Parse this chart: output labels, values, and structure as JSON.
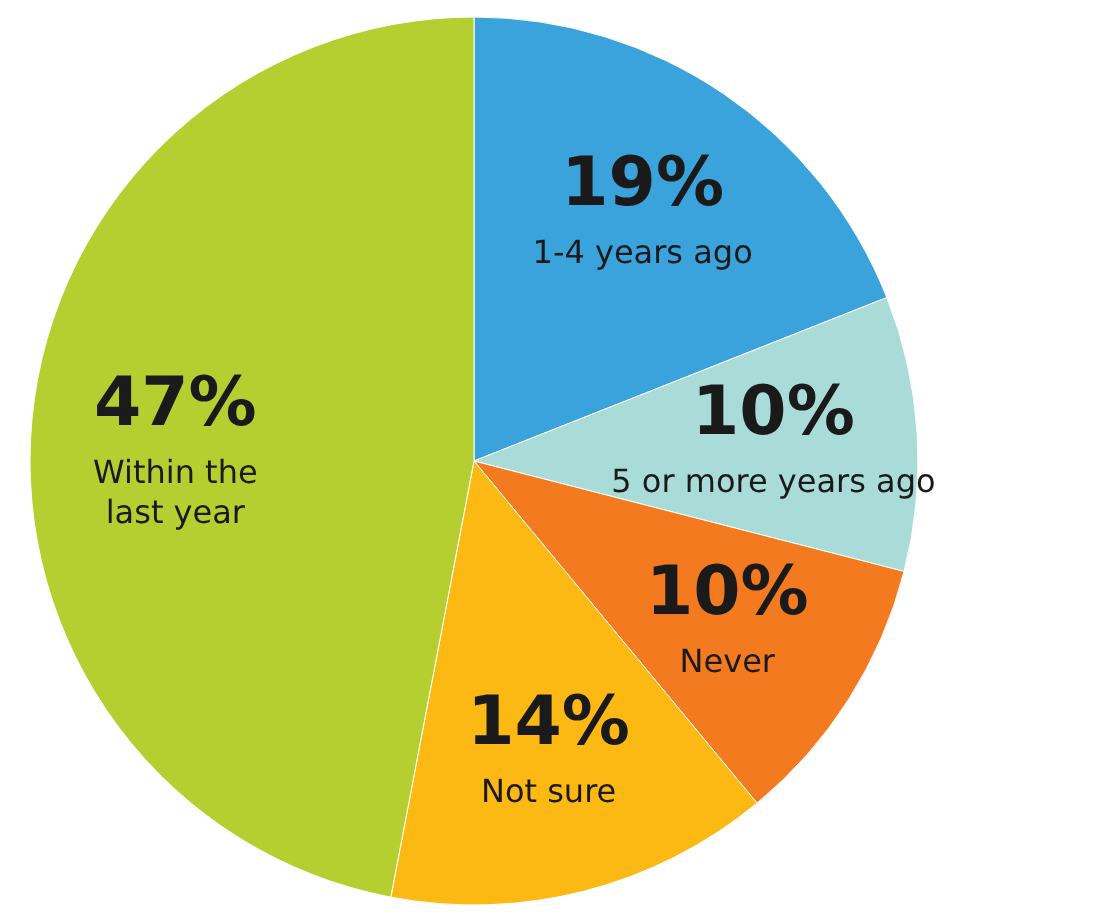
{
  "chart_data": {
    "type": "pie",
    "categories": [
      "1-4 years ago",
      "5 or more years ago",
      "Never",
      "Not sure",
      "Within the last year"
    ],
    "values": [
      19,
      10,
      10,
      14,
      47
    ],
    "colors": [
      "#3ba3dc",
      "#a9dcd9",
      "#f47a20",
      "#fdb913",
      "#b5cf31"
    ],
    "value_labels": [
      "19%",
      "10%",
      "10%",
      "14%",
      "47%"
    ]
  }
}
